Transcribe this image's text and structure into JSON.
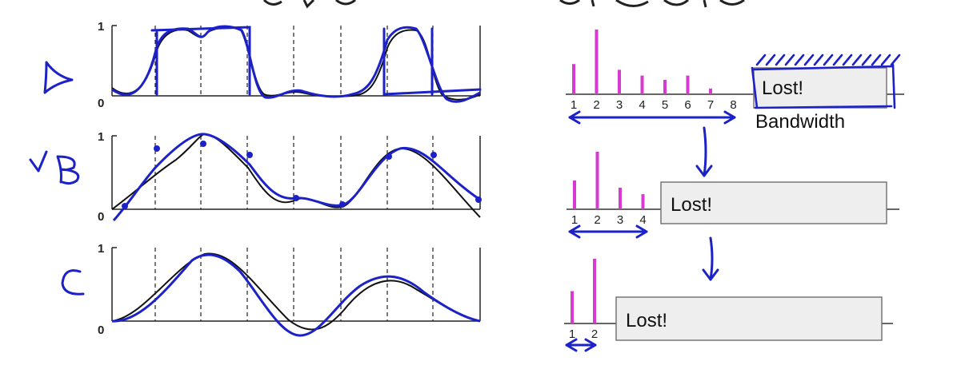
{
  "colors": {
    "ink": "#1c22c8",
    "curve": "#111111",
    "bar": "#d63ad0",
    "box_fill": "#eeeeee",
    "box_stroke": "#777777"
  },
  "handwritten_labels": [
    "A",
    "B",
    "C"
  ],
  "plots": [
    {
      "name": "A",
      "y_top": "1",
      "y_bottom": "0"
    },
    {
      "name": "B",
      "y_top": "1",
      "y_bottom": "0"
    },
    {
      "name": "C",
      "y_top": "1",
      "y_bottom": "0"
    }
  ],
  "spectra": [
    {
      "ticks": [
        "1",
        "2",
        "3",
        "4",
        "5",
        "6",
        "7",
        "8"
      ],
      "heights": [
        0.42,
        0.9,
        0.34,
        0.26,
        0.2,
        0.26,
        0.08
      ],
      "lost_label": "Lost!",
      "bandwidth_label": "Bandwidth"
    },
    {
      "ticks": [
        "1",
        "2",
        "3",
        "4"
      ],
      "heights": [
        0.4,
        0.8,
        0.3,
        0.21
      ],
      "lost_label": "Lost!"
    },
    {
      "ticks": [
        "1",
        "2"
      ],
      "heights": [
        0.45,
        0.9
      ],
      "lost_label": "Lost!"
    }
  ],
  "chart_data": [
    {
      "type": "line",
      "title": "",
      "y_ticks": [
        "0",
        "1"
      ]
    },
    {
      "type": "line",
      "title": "",
      "y_ticks": [
        "0",
        "1"
      ]
    },
    {
      "type": "line",
      "title": "",
      "y_ticks": [
        "0",
        "1"
      ]
    },
    {
      "type": "bar",
      "categories": [
        "1",
        "2",
        "3",
        "4",
        "5",
        "6",
        "7"
      ],
      "values": [
        0.42,
        0.9,
        0.34,
        0.26,
        0.2,
        0.26,
        0.08
      ],
      "x_ticks": [
        "1",
        "2",
        "3",
        "4",
        "5",
        "6",
        "7",
        "8"
      ],
      "annotations": [
        "Lost!",
        "Bandwidth"
      ]
    },
    {
      "type": "bar",
      "categories": [
        "1",
        "2",
        "3",
        "4"
      ],
      "values": [
        0.4,
        0.8,
        0.3,
        0.21
      ],
      "annotations": [
        "Lost!"
      ]
    },
    {
      "type": "bar",
      "categories": [
        "1",
        "2"
      ],
      "values": [
        0.45,
        0.9
      ],
      "annotations": [
        "Lost!"
      ]
    }
  ]
}
